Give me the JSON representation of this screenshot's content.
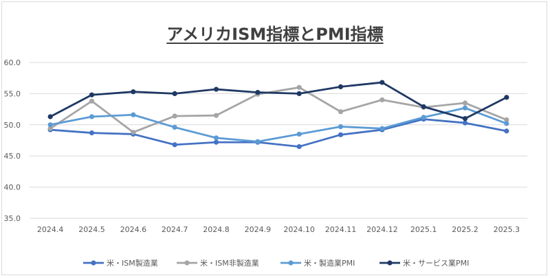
{
  "chart_data": {
    "type": "line",
    "title": "アメリカISM指標とPMI指標",
    "categories": [
      "2024.4",
      "2024.5",
      "2024.6",
      "2024.7",
      "2024.8",
      "2024.9",
      "2024.10",
      "2024.11",
      "2024.12",
      "2025.1",
      "2025.2",
      "2025.3"
    ],
    "ylim": [
      35.0,
      60.0
    ],
    "yticks": [
      "35.0",
      "40.0",
      "45.0",
      "50.0",
      "55.0",
      "60.0"
    ],
    "grid": true,
    "legend": "bottom",
    "series": [
      {
        "name": "米・ISM製造業",
        "color": "#4472c4",
        "values": [
          49.2,
          48.7,
          48.5,
          46.8,
          47.2,
          47.2,
          46.5,
          48.4,
          49.2,
          50.9,
          50.3,
          49.0
        ]
      },
      {
        "name": "米・ISM非製造業",
        "color": "#a5a5a5",
        "values": [
          49.4,
          53.8,
          48.8,
          51.4,
          51.5,
          54.9,
          56.0,
          52.1,
          54.0,
          52.8,
          53.5,
          50.8
        ]
      },
      {
        "name": "米・製造業PMI",
        "color": "#5b9bd5",
        "values": [
          50.0,
          51.3,
          51.6,
          49.6,
          47.9,
          47.3,
          48.5,
          49.7,
          49.4,
          51.2,
          52.7,
          50.2
        ]
      },
      {
        "name": "米・サービス業PMI",
        "color": "#1f3864",
        "values": [
          51.3,
          54.8,
          55.3,
          55.0,
          55.7,
          55.2,
          55.0,
          56.1,
          56.8,
          52.9,
          51.0,
          54.4
        ]
      }
    ]
  }
}
